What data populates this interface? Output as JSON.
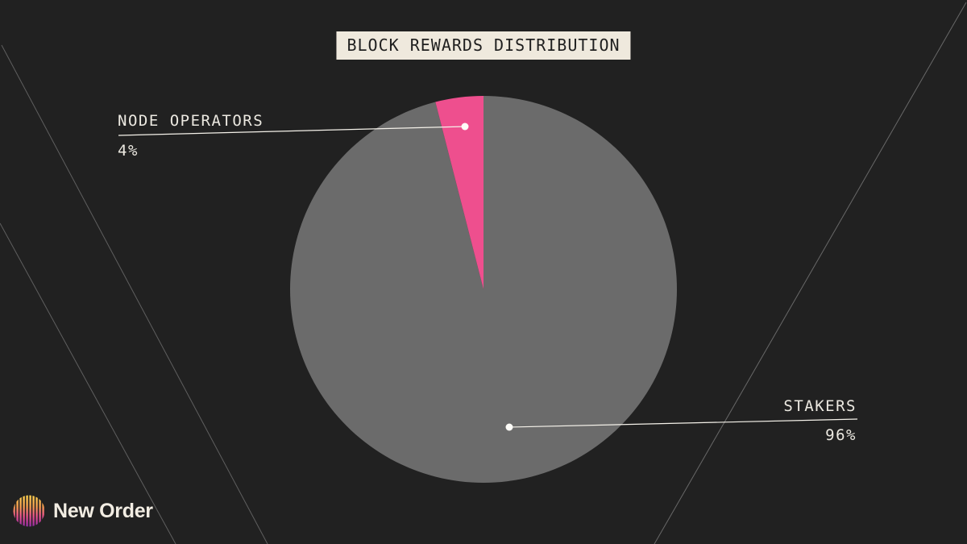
{
  "chart_data": {
    "type": "pie",
    "title": "BLOCK REWARDS DISTRIBUTION",
    "slices": [
      {
        "label": "STAKERS",
        "value": 96,
        "display": "96%",
        "color": "#6B6B6B"
      },
      {
        "label": "NODE OPERATORS",
        "value": 4,
        "display": "4%",
        "color": "#EE4F8E"
      }
    ],
    "start_angle_deg": 0,
    "direction": "clockwise",
    "legend_position": "none",
    "data_labels": "external-callouts"
  },
  "callouts": {
    "node_operators": {
      "label": "NODE OPERATORS",
      "percent": "4%"
    },
    "stakers": {
      "label": "STAKERS",
      "percent": "96%"
    }
  },
  "branding": {
    "name": "New Order"
  },
  "colors": {
    "background": "#212121",
    "slice_stakers": "#6B6B6B",
    "slice_node_operators": "#EE4F8E",
    "title_box_bg": "#EFE9DD",
    "title_text": "#1F1F1F",
    "callout_text": "#ECE9E1",
    "leader_line": "#F5F2EA",
    "decor_line": "#6F6F6F",
    "logo_gradient_top": "#FFD44E",
    "logo_gradient_mid": "#EC5B85",
    "logo_gradient_bottom": "#8C2FA4"
  }
}
